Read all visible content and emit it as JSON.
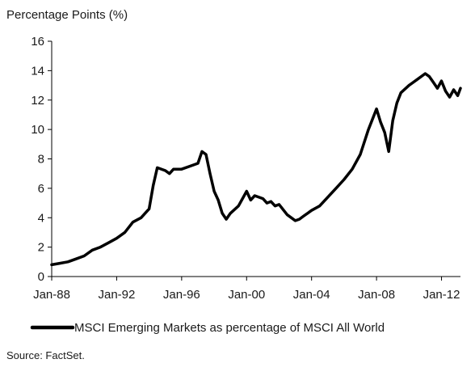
{
  "chart_data": {
    "type": "line",
    "ylabel": "Percentage Points (%)",
    "xlabel": "",
    "ylim": [
      0,
      16
    ],
    "yticks": [
      0,
      2,
      4,
      6,
      8,
      10,
      12,
      14,
      16
    ],
    "xlim": [
      "1988-01",
      "2013-03"
    ],
    "xticks": [
      "Jan-88",
      "Jan-92",
      "Jan-96",
      "Jan-00",
      "Jan-04",
      "Jan-08",
      "Jan-12"
    ],
    "grid": false,
    "legend_position": "bottom",
    "line_color": "#000000",
    "series": [
      {
        "name": "MSCI Emerging Markets as percentage of MSCI All World",
        "x": [
          "1988-01",
          "1988-07",
          "1989-01",
          "1989-07",
          "1990-01",
          "1990-07",
          "1991-01",
          "1991-07",
          "1992-01",
          "1992-07",
          "1993-01",
          "1993-07",
          "1993-10",
          "1994-01",
          "1994-04",
          "1994-07",
          "1995-01",
          "1995-04",
          "1995-07",
          "1996-01",
          "1996-07",
          "1997-01",
          "1997-04",
          "1997-07",
          "1997-10",
          "1998-01",
          "1998-04",
          "1998-07",
          "1998-10",
          "1999-01",
          "1999-07",
          "2000-01",
          "2000-04",
          "2000-07",
          "2001-01",
          "2001-04",
          "2001-07",
          "2001-10",
          "2002-01",
          "2002-07",
          "2003-01",
          "2003-04",
          "2003-07",
          "2004-01",
          "2004-07",
          "2005-01",
          "2005-07",
          "2006-01",
          "2006-07",
          "2007-01",
          "2007-07",
          "2008-01",
          "2008-04",
          "2008-07",
          "2008-10",
          "2009-01",
          "2009-04",
          "2009-07",
          "2010-01",
          "2010-07",
          "2011-01",
          "2011-04",
          "2011-07",
          "2011-10",
          "2012-01",
          "2012-04",
          "2012-07",
          "2012-10",
          "2013-01",
          "2013-03"
        ],
        "values": [
          0.8,
          0.9,
          1.0,
          1.2,
          1.4,
          1.8,
          2.0,
          2.3,
          2.6,
          3.0,
          3.7,
          4.0,
          4.3,
          4.6,
          6.2,
          7.4,
          7.2,
          7.0,
          7.3,
          7.3,
          7.5,
          7.7,
          8.5,
          8.3,
          7.0,
          5.8,
          5.2,
          4.3,
          3.9,
          4.3,
          4.8,
          5.8,
          5.2,
          5.5,
          5.3,
          5.0,
          5.1,
          4.8,
          4.9,
          4.2,
          3.8,
          3.9,
          4.1,
          4.5,
          4.8,
          5.4,
          6.0,
          6.6,
          7.3,
          8.3,
          10.0,
          11.4,
          10.5,
          9.8,
          8.5,
          10.6,
          11.8,
          12.5,
          13.0,
          13.4,
          13.8,
          13.6,
          13.2,
          12.8,
          13.3,
          12.6,
          12.2,
          12.7,
          12.3,
          12.8
        ]
      }
    ]
  },
  "source": "Source: FactSet."
}
